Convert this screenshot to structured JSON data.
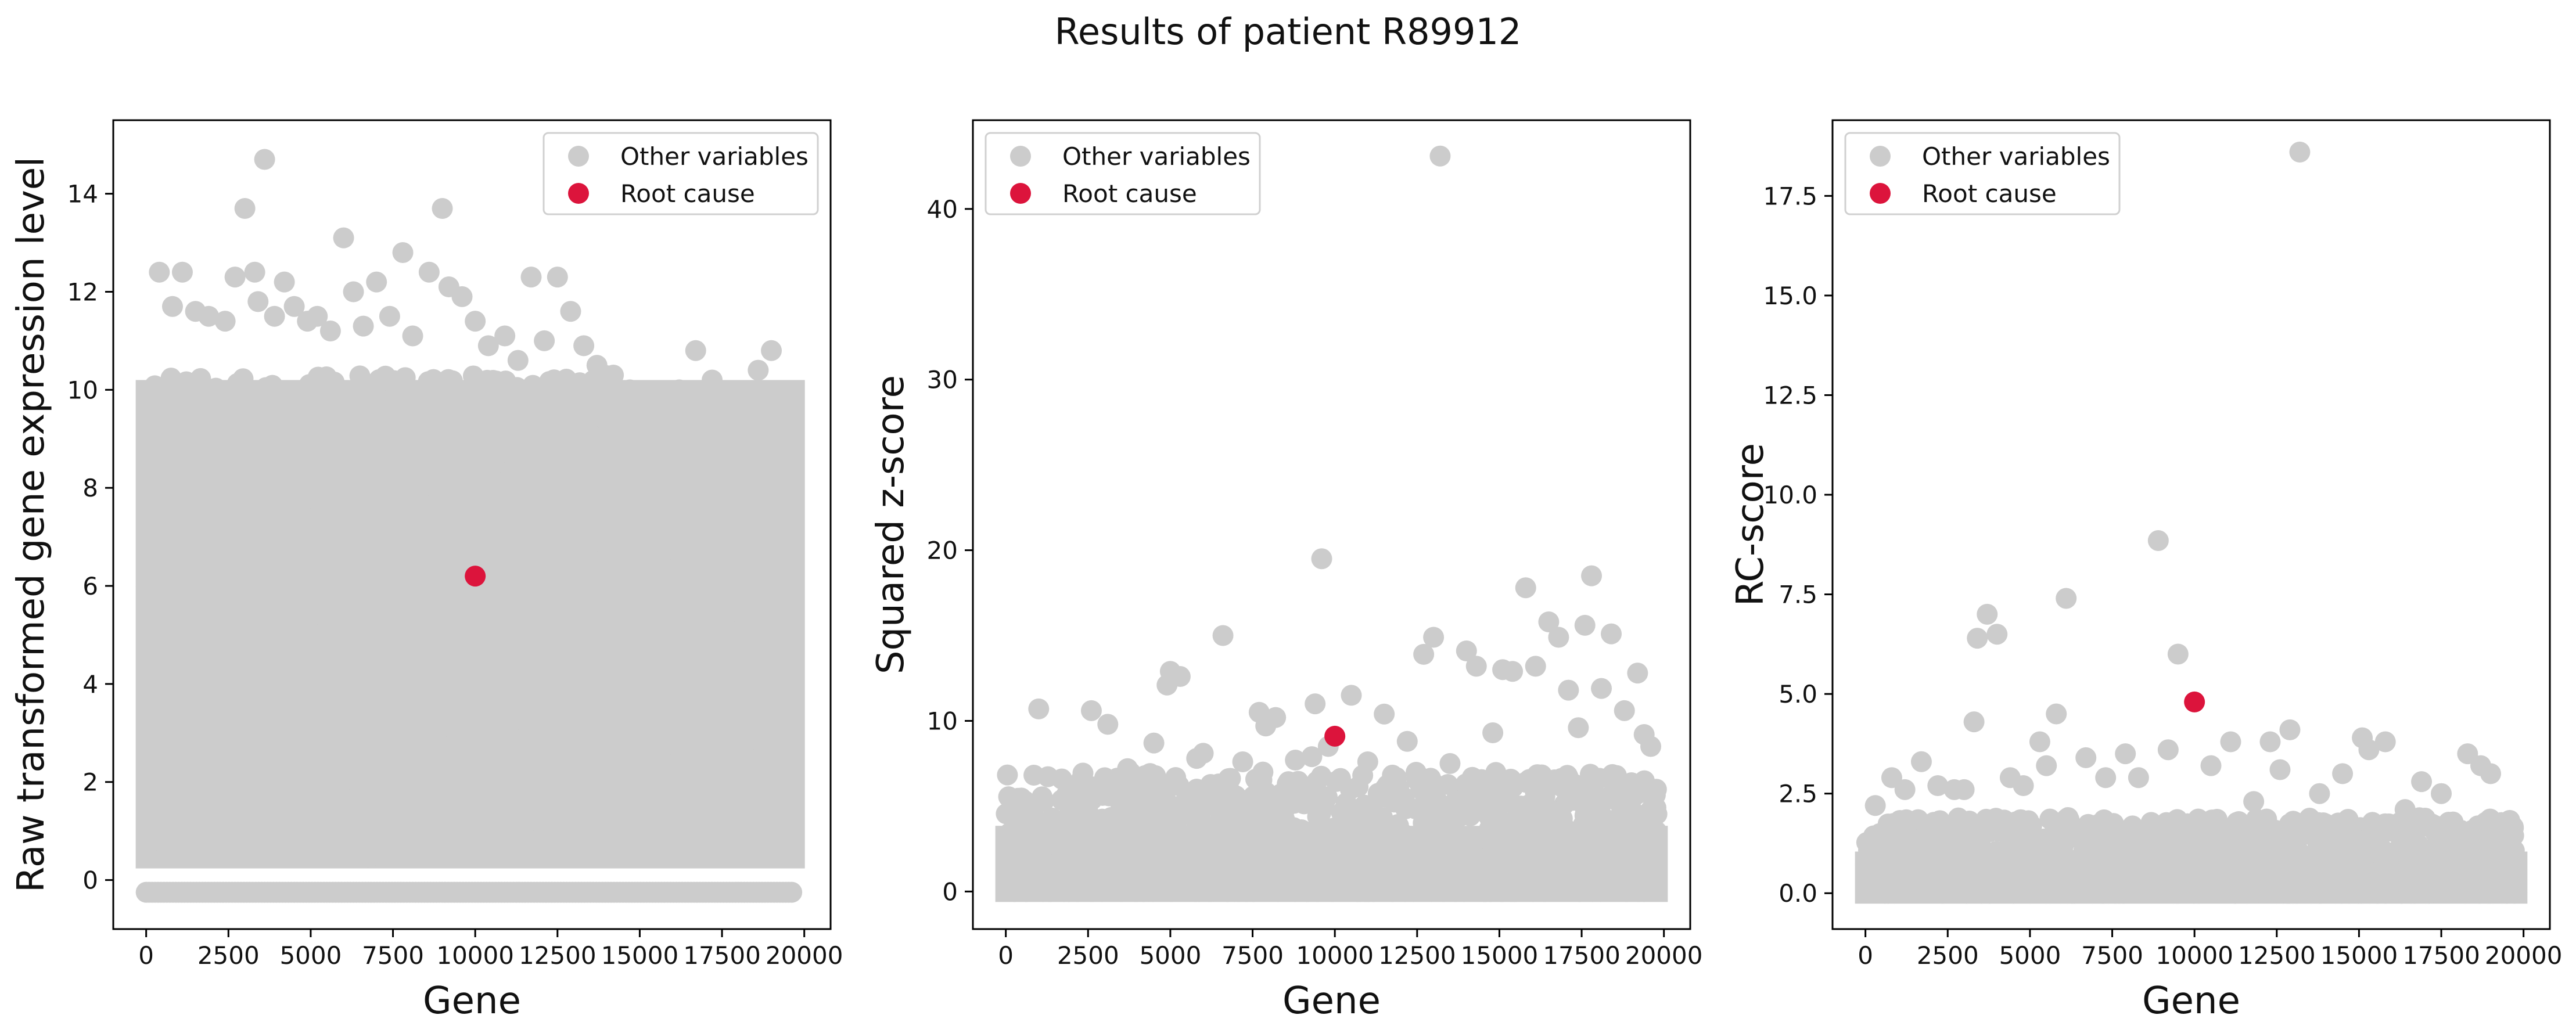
{
  "figure": {
    "title": "Results of patient R89912"
  },
  "colors": {
    "other": "#cccccc",
    "root": "#dc143c"
  },
  "chart_data": [
    {
      "type": "scatter",
      "title": "",
      "xlabel": "Gene",
      "ylabel": "Raw transformed gene expression level",
      "xlim": [
        -1000,
        20800
      ],
      "ylim": [
        -1.0,
        15.5
      ],
      "xticks": [
        0,
        2500,
        5000,
        7500,
        10000,
        12500,
        15000,
        17500,
        20000
      ],
      "xtick_labels": [
        "0",
        "2500",
        "5000",
        "7500",
        "10000",
        "12500",
        "15000",
        "17500",
        "20000"
      ],
      "yticks": [
        0,
        2,
        4,
        6,
        8,
        10,
        12,
        14
      ],
      "ytick_labels": [
        "0",
        "2",
        "4",
        "6",
        "8",
        "10",
        "12",
        "14"
      ],
      "legend": {
        "position": "top-right",
        "entries": [
          "Other variables",
          "Root cause"
        ]
      },
      "series": [
        {
          "name": "Other variables",
          "x": [
            400,
            800,
            1100,
            1500,
            1900,
            2400,
            2700,
            3000,
            3300,
            3400,
            3600,
            3900,
            4200,
            4500,
            4900,
            5200,
            5600,
            6000,
            6300,
            6600,
            7000,
            7400,
            7800,
            8100,
            8600,
            9000,
            9200,
            9600,
            10000,
            10400,
            10900,
            11300,
            11700,
            12100,
            12500,
            12900,
            13300,
            13700,
            14200,
            14700,
            15200,
            15700,
            16200,
            16700,
            17200,
            17700,
            18100,
            18600,
            19000,
            19300,
            19600
          ],
          "y": [
            12.4,
            11.7,
            12.4,
            11.6,
            11.5,
            11.4,
            12.3,
            13.7,
            12.4,
            11.8,
            14.7,
            11.5,
            12.2,
            11.7,
            11.4,
            11.5,
            11.2,
            13.1,
            12.0,
            11.3,
            12.2,
            11.5,
            12.8,
            11.1,
            12.4,
            13.7,
            12.1,
            11.9,
            11.4,
            10.9,
            11.1,
            10.6,
            12.3,
            11.0,
            12.3,
            11.6,
            10.9,
            10.5,
            10.3,
            10.0,
            9.6,
            9.5,
            10.0,
            10.8,
            10.2,
            9.5,
            9.8,
            10.4,
            10.8,
            9.9,
            9.3
          ],
          "dense_range": {
            "x": [
              0,
              19700
            ],
            "y": [
              -0.25,
              10.5
            ]
          }
        },
        {
          "name": "Root cause",
          "x": [
            10000
          ],
          "y": [
            6.2
          ]
        }
      ]
    },
    {
      "type": "scatter",
      "title": "",
      "xlabel": "Gene",
      "ylabel": "Squared z-score",
      "xlim": [
        -1000,
        20800
      ],
      "ylim": [
        -2.2,
        45.2
      ],
      "xticks": [
        0,
        2500,
        5000,
        7500,
        10000,
        12500,
        15000,
        17500,
        20000
      ],
      "xtick_labels": [
        "0",
        "2500",
        "5000",
        "7500",
        "10000",
        "12500",
        "15000",
        "17500",
        "20000"
      ],
      "yticks": [
        0,
        10,
        20,
        30,
        40
      ],
      "ytick_labels": [
        "0",
        "10",
        "20",
        "30",
        "40"
      ],
      "legend": {
        "position": "top-left",
        "entries": [
          "Other variables",
          "Root cause"
        ]
      },
      "series": [
        {
          "name": "Other variables",
          "x": [
            1000,
            2600,
            3100,
            3700,
            4500,
            4900,
            5000,
            5300,
            5800,
            6000,
            6600,
            7200,
            7700,
            7900,
            8200,
            8800,
            9300,
            9400,
            9600,
            9800,
            10500,
            11000,
            11500,
            12200,
            12700,
            13000,
            13200,
            13500,
            14000,
            14300,
            14800,
            15100,
            15400,
            15800,
            16100,
            16500,
            16800,
            17100,
            17400,
            17600,
            17800,
            18100,
            18400,
            18800,
            19200,
            19400,
            19600
          ],
          "y": [
            10.7,
            10.6,
            9.8,
            7.2,
            8.7,
            12.1,
            12.9,
            12.6,
            7.8,
            8.1,
            15.0,
            7.6,
            10.5,
            9.7,
            10.2,
            7.7,
            7.9,
            11.0,
            19.5,
            8.5,
            11.5,
            7.6,
            10.4,
            8.8,
            13.9,
            14.9,
            43.1,
            7.5,
            14.1,
            13.2,
            9.3,
            13.0,
            12.9,
            17.8,
            13.2,
            15.8,
            14.9,
            11.8,
            9.6,
            15.6,
            18.5,
            11.9,
            15.1,
            10.6,
            12.8,
            9.2,
            8.5
          ],
          "dense_range": {
            "x": [
              0,
              19800
            ],
            "y": [
              0,
              7
            ]
          }
        },
        {
          "name": "Root cause",
          "x": [
            10000
          ],
          "y": [
            9.1
          ]
        }
      ]
    },
    {
      "type": "scatter",
      "title": "",
      "xlabel": "Gene",
      "ylabel": "RC-score",
      "xlim": [
        -1000,
        20800
      ],
      "ylim": [
        -0.9,
        19.4
      ],
      "xticks": [
        0,
        2500,
        5000,
        7500,
        10000,
        12500,
        15000,
        17500,
        20000
      ],
      "xtick_labels": [
        "0",
        "2500",
        "5000",
        "7500",
        "10000",
        "12500",
        "15000",
        "17500",
        "20000"
      ],
      "yticks": [
        0,
        2.5,
        5,
        7.5,
        10,
        12.5,
        15,
        17.5
      ],
      "ytick_labels": [
        "0.0",
        "2.5",
        "5.0",
        "7.5",
        "10.0",
        "12.5",
        "15.0",
        "17.5"
      ],
      "legend": {
        "position": "top-left",
        "entries": [
          "Other variables",
          "Root cause"
        ]
      },
      "series": [
        {
          "name": "Other variables",
          "x": [
            300,
            800,
            1200,
            1700,
            2200,
            2700,
            3000,
            3300,
            3400,
            3700,
            4000,
            4400,
            4800,
            5300,
            5500,
            5800,
            6100,
            6700,
            7300,
            7900,
            8300,
            8900,
            9200,
            9500,
            10500,
            11100,
            11800,
            12300,
            12600,
            12900,
            13200,
            13800,
            14500,
            15100,
            15300,
            15800,
            16400,
            16900,
            17500,
            18300,
            18700,
            19000
          ],
          "y": [
            2.2,
            2.9,
            2.6,
            3.3,
            2.7,
            2.6,
            2.6,
            4.3,
            6.4,
            7.0,
            6.5,
            2.9,
            2.7,
            3.8,
            3.2,
            4.5,
            7.4,
            3.4,
            2.9,
            3.5,
            2.9,
            8.85,
            3.6,
            6.0,
            3.2,
            3.8,
            2.3,
            3.8,
            3.1,
            4.1,
            18.6,
            2.5,
            3.0,
            3.9,
            3.6,
            3.8,
            2.1,
            2.8,
            2.5,
            3.5,
            3.2,
            3.0
          ],
          "dense_range": {
            "x": [
              0,
              19800
            ],
            "y": [
              0,
              1.9
            ]
          }
        },
        {
          "name": "Root cause",
          "x": [
            10000
          ],
          "y": [
            4.8
          ]
        }
      ]
    }
  ]
}
